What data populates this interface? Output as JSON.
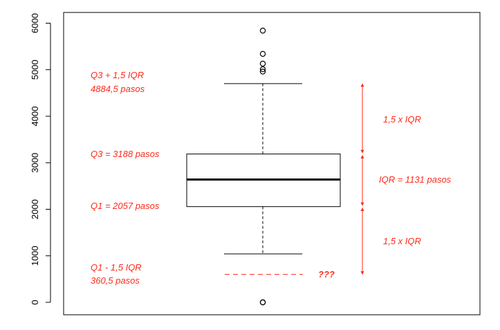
{
  "chart_data": {
    "type": "box",
    "ylim": [
      -250,
      6250
    ],
    "yticks": [
      0,
      1000,
      2000,
      3000,
      4000,
      5000,
      6000
    ],
    "ytick_labels": [
      "0",
      "1000",
      "2000",
      "3000",
      "4000",
      "5000",
      "6000"
    ],
    "box": {
      "q1": 2057,
      "median": 2640,
      "q3": 3188,
      "whisker_low": 1040,
      "whisker_high": 4700
    },
    "outliers": [
      5840,
      5340,
      5130,
      5010,
      4960,
      0,
      0
    ],
    "reference_line": {
      "value": 600,
      "label": "???"
    },
    "annotations": {
      "upper_fence_line1": "Q3 + 1,5 IQR",
      "upper_fence_line2": "4884,5 pasos",
      "q3": "Q3 = 3188 pasos",
      "q1": "Q1 = 2057 pasos",
      "lower_fence_line1": "Q1 - 1,5 IQR",
      "lower_fence_line2": "360,5 pasos",
      "upper_span": "1,5 x IQR",
      "iqr_span": "IQR = 1131 pasos",
      "lower_span": "1,5 x IQR"
    },
    "brackets": [
      {
        "from": 3210,
        "to": 4700
      },
      {
        "from": 2080,
        "to": 3160
      },
      {
        "from": 600,
        "to": 2030
      }
    ],
    "colors": {
      "annotation": "#ff2a1a",
      "box": "#000000"
    }
  }
}
